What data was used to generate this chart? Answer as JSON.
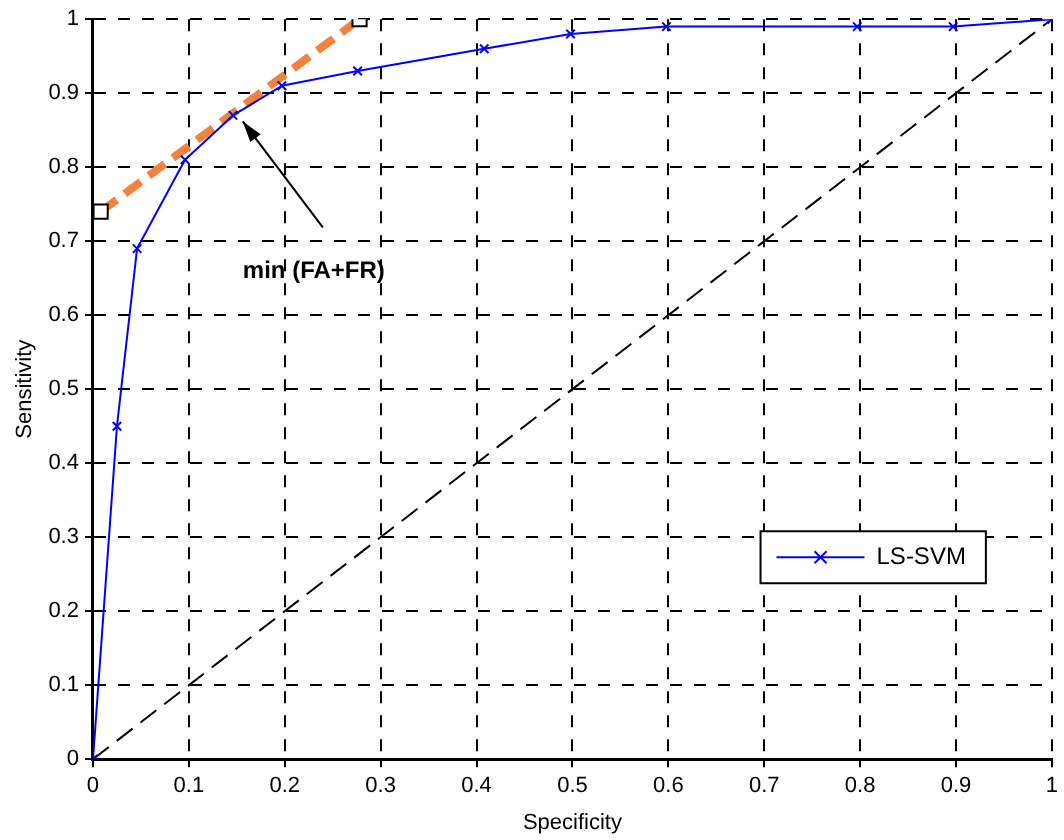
{
  "chart_data": {
    "type": "line",
    "xlabel": "Specificity",
    "ylabel": "Sensitivity",
    "xlim": [
      0,
      1
    ],
    "ylim": [
      0,
      1
    ],
    "xticks": [
      0,
      0.1,
      0.2,
      0.3,
      0.4,
      0.5,
      0.6,
      0.7,
      0.8,
      0.9,
      1
    ],
    "yticks": [
      0,
      0.1,
      0.2,
      0.3,
      0.4,
      0.5,
      0.6,
      0.7,
      0.8,
      0.9,
      1
    ],
    "grid": true,
    "legend": "bottom right",
    "series": [
      {
        "name": "LS-SVM",
        "color": "#0000ff",
        "marker": "cross",
        "line_style": "solid",
        "x": [
          0,
          0.025,
          0.046,
          0.096,
          0.146,
          0.197,
          0.276,
          0.408,
          0.498,
          0.598,
          0.797,
          0.897,
          1
        ],
        "values": [
          0,
          0.45,
          0.69,
          0.81,
          0.87,
          0.91,
          0.93,
          0.96,
          0.98,
          0.99,
          0.99,
          0.99,
          1
        ]
      },
      {
        "color": "#f4813c",
        "marker": "square",
        "line_style": "dashed",
        "x": [
          0.008,
          0.278
        ],
        "values": [
          0.74,
          1
        ]
      },
      {
        "color": "#000000",
        "marker": "none",
        "line_style": "dashed",
        "x": [
          0,
          1
        ],
        "values": [
          0,
          1
        ]
      }
    ],
    "annotations": [
      {
        "text": "min (FA+FR)",
        "x": 0.15,
        "y": 0.87
      }
    ]
  }
}
